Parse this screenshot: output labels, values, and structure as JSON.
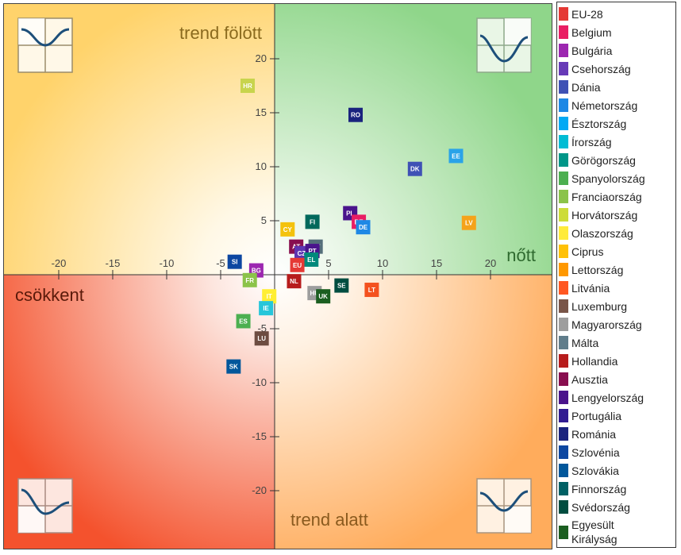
{
  "chart_data": {
    "type": "scatter",
    "xlim": [
      -25,
      25
    ],
    "ylim": [
      -25,
      25
    ],
    "x_ticks": [
      -20,
      -15,
      -10,
      -5,
      5,
      10,
      15,
      20
    ],
    "y_ticks": [
      20,
      15,
      10,
      5,
      -5,
      -10,
      -15,
      -20
    ],
    "quadrant_labels": {
      "top_right": "nőtt",
      "top_left_header": "trend fölött",
      "bottom_left": "csökkent",
      "bottom_right_header": "trend alatt"
    },
    "quadrant_colors": {
      "top_left": "#ffd36b",
      "top_right": "#8fd68a",
      "bottom_left": "#f4522d",
      "bottom_right": "#ffac5c"
    },
    "points": [
      {
        "code": "HR",
        "x": -2.5,
        "y": 17.5,
        "color": "#c8d44d"
      },
      {
        "code": "RO",
        "x": 7.5,
        "y": 14.8,
        "color": "#1a237e"
      },
      {
        "code": "EE",
        "x": 16.8,
        "y": 11.0,
        "color": "#29a3e8"
      },
      {
        "code": "DK",
        "x": 13.0,
        "y": 9.8,
        "color": "#3f51b5"
      },
      {
        "code": "LV",
        "x": 18.0,
        "y": 4.8,
        "color": "#f5a31a"
      },
      {
        "code": "FI",
        "x": 3.5,
        "y": 4.9,
        "color": "#00695c"
      },
      {
        "code": "PL",
        "x": 7.0,
        "y": 5.7,
        "color": "#4a148c"
      },
      {
        "code": "BE",
        "x": 7.8,
        "y": 4.9,
        "color": "#e91e63"
      },
      {
        "code": "DE",
        "x": 8.2,
        "y": 4.4,
        "color": "#1e88e5"
      },
      {
        "code": "CY",
        "x": 1.2,
        "y": 4.2,
        "color": "#f4c20d"
      },
      {
        "code": "MT",
        "x": 3.8,
        "y": 2.6,
        "color": "#546e7a"
      },
      {
        "code": "AT",
        "x": 2.0,
        "y": 2.6,
        "color": "#880e4f"
      },
      {
        "code": "CZ",
        "x": 2.5,
        "y": 2.0,
        "color": "#5e35b1"
      },
      {
        "code": "PT",
        "x": 3.5,
        "y": 2.2,
        "color": "#4a148c"
      },
      {
        "code": "EL",
        "x": 3.4,
        "y": 1.4,
        "color": "#00897b"
      },
      {
        "code": "EU",
        "x": 2.1,
        "y": 0.9,
        "color": "#e53935"
      },
      {
        "code": "SI",
        "x": -3.7,
        "y": 1.2,
        "color": "#0d47a1"
      },
      {
        "code": "BG",
        "x": -1.7,
        "y": 0.4,
        "color": "#9c27b0"
      },
      {
        "code": "FR",
        "x": -2.3,
        "y": -0.5,
        "color": "#8bc34a"
      },
      {
        "code": "NL",
        "x": 1.8,
        "y": -0.6,
        "color": "#b71c1c"
      },
      {
        "code": "SE",
        "x": 6.2,
        "y": -1.0,
        "color": "#004d40"
      },
      {
        "code": "LT",
        "x": 9.0,
        "y": -1.4,
        "color": "#f4511e"
      },
      {
        "code": "HU",
        "x": 3.7,
        "y": -1.7,
        "color": "#9e9e9e"
      },
      {
        "code": "UK",
        "x": 4.5,
        "y": -2.0,
        "color": "#1b5e20"
      },
      {
        "code": "IT",
        "x": -0.5,
        "y": -2.0,
        "color": "#ffee33"
      },
      {
        "code": "IE",
        "x": -0.8,
        "y": -3.1,
        "color": "#26c6da"
      },
      {
        "code": "ES",
        "x": -2.9,
        "y": -4.3,
        "color": "#4caf50"
      },
      {
        "code": "LU",
        "x": -1.2,
        "y": -5.9,
        "color": "#6d4c41"
      },
      {
        "code": "SK",
        "x": -3.8,
        "y": -8.5,
        "color": "#01579b"
      }
    ]
  },
  "legend": [
    {
      "label": "EU-28",
      "color": "#e53935"
    },
    {
      "label": "Belgium",
      "color": "#e91e63"
    },
    {
      "label": "Bulgária",
      "color": "#9c27b0"
    },
    {
      "label": "Csehország",
      "color": "#673ab7"
    },
    {
      "label": "Dánia",
      "color": "#3f51b5"
    },
    {
      "label": "Németország",
      "color": "#1e88e5"
    },
    {
      "label": "Észtország",
      "color": "#03a9f4"
    },
    {
      "label": "Írország",
      "color": "#00bcd4"
    },
    {
      "label": "Görögország",
      "color": "#009688"
    },
    {
      "label": "Spanyolország",
      "color": "#4caf50"
    },
    {
      "label": "Franciaország",
      "color": "#8bc34a"
    },
    {
      "label": "Horvátország",
      "color": "#cddc39"
    },
    {
      "label": "Olaszország",
      "color": "#ffeb3b"
    },
    {
      "label": "Ciprus",
      "color": "#ffc107"
    },
    {
      "label": "Lettország",
      "color": "#ff9800"
    },
    {
      "label": "Litvánia",
      "color": "#ff5722"
    },
    {
      "label": "Luxemburg",
      "color": "#795548"
    },
    {
      "label": "Magyarország",
      "color": "#9e9e9e"
    },
    {
      "label": "Málta",
      "color": "#607d8b"
    },
    {
      "label": "Hollandia",
      "color": "#b71c1c"
    },
    {
      "label": "Ausztia",
      "color": "#880e4f"
    },
    {
      "label": "Lengyelország",
      "color": "#4a148c"
    },
    {
      "label": "Portugália",
      "color": "#311b92"
    },
    {
      "label": "Románia",
      "color": "#1a237e"
    },
    {
      "label": "Szlovénia",
      "color": "#0d47a1"
    },
    {
      "label": "Szlovákia",
      "color": "#01579b"
    },
    {
      "label": "Finnország",
      "color": "#006064"
    },
    {
      "label": "Svédország",
      "color": "#004d40"
    },
    {
      "label": "Egyesült Királyság",
      "color": "#1b5e20"
    }
  ]
}
